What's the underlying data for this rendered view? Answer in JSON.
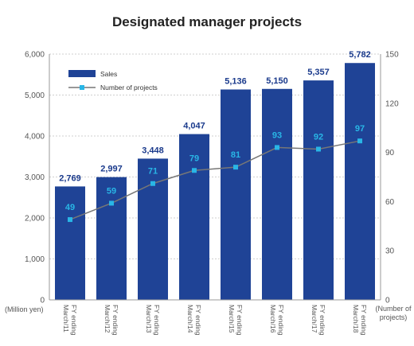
{
  "chart_data": {
    "type": "bar",
    "title": "Designated manager projects",
    "categories": [
      [
        "FY ending",
        "March/11"
      ],
      [
        "FY ending",
        "March/12"
      ],
      [
        "FY ending",
        "March/13"
      ],
      [
        "FY ending",
        "March/14"
      ],
      [
        "FY ending",
        "March/15"
      ],
      [
        "FY ending",
        "March/16"
      ],
      [
        "FY ending",
        "March/17"
      ],
      [
        "FY ending",
        "March/18"
      ]
    ],
    "series": [
      {
        "name": "Sales",
        "type": "bar",
        "axis": "left",
        "values": [
          2769,
          2997,
          3448,
          4047,
          5136,
          5150,
          5357,
          5782
        ],
        "value_labels": [
          "2,769",
          "2,997",
          "3,448",
          "4,047",
          "5,136",
          "5,150",
          "5,357",
          "5,782"
        ],
        "color": "#1f4396"
      },
      {
        "name": "Number of projects",
        "type": "line",
        "axis": "right",
        "values": [
          49,
          59,
          71,
          79,
          81,
          93,
          92,
          97
        ],
        "value_labels": [
          "49",
          "59",
          "71",
          "79",
          "81",
          "93",
          "92",
          "97"
        ],
        "color": "#29b6e6",
        "line_color": "#777777"
      }
    ],
    "y_left": {
      "unit_label": "(Million yen)",
      "ylim": [
        0,
        6000
      ],
      "ticks": [
        "0",
        "1,000",
        "2,000",
        "3,000",
        "4,000",
        "5,000",
        "6,000"
      ]
    },
    "y_right": {
      "unit_label": [
        "(Number of",
        "projects)"
      ],
      "ylim": [
        0,
        150
      ],
      "ticks": [
        "0",
        "30",
        "60",
        "90",
        "120",
        "150"
      ]
    },
    "grid": true,
    "legend_position": "top-left"
  }
}
